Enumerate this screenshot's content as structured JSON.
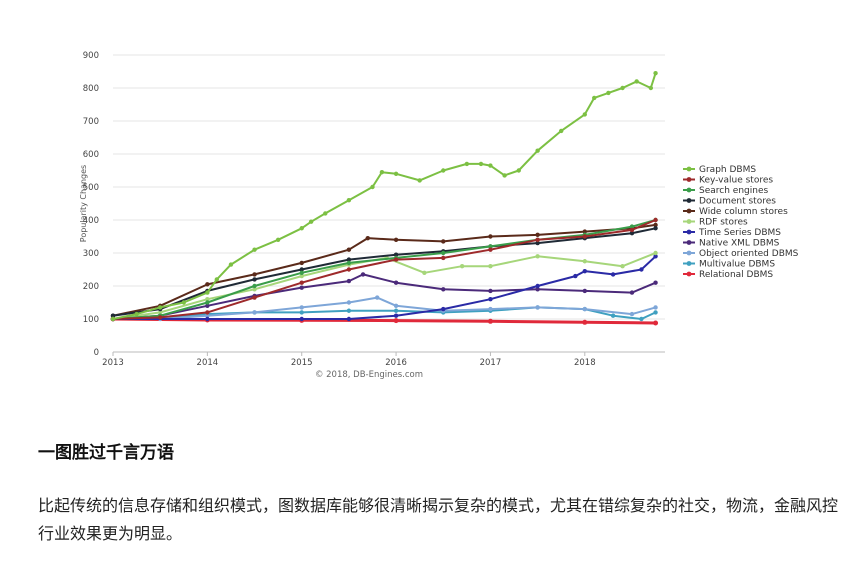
{
  "chart_data": {
    "type": "line",
    "ylabel": "Popularity Changes",
    "ylim": [
      0,
      900
    ],
    "yticks": [
      0,
      100,
      200,
      300,
      400,
      500,
      600,
      700,
      800,
      900
    ],
    "xlim": [
      2013.0,
      2018.85
    ],
    "xticks": [
      2013,
      2014,
      2015,
      2016,
      2017,
      2018
    ],
    "credit": "© 2018, DB-Engines.com",
    "grid": true,
    "legend_position": "right",
    "series": [
      {
        "name": "Graph DBMS",
        "color": "#7cc043",
        "x": [
          2013.0,
          2013.25,
          2013.5,
          2013.75,
          2014.0,
          2014.1,
          2014.25,
          2014.5,
          2014.75,
          2015.0,
          2015.1,
          2015.25,
          2015.5,
          2015.75,
          2015.85,
          2016.0,
          2016.25,
          2016.5,
          2016.75,
          2016.9,
          2017.0,
          2017.15,
          2017.3,
          2017.5,
          2017.75,
          2018.0,
          2018.1,
          2018.25,
          2018.4,
          2018.55,
          2018.7,
          2018.75
        ],
        "y": [
          100,
          115,
          135,
          150,
          180,
          220,
          265,
          310,
          340,
          375,
          395,
          420,
          460,
          500,
          545,
          540,
          520,
          550,
          570,
          570,
          565,
          535,
          550,
          610,
          670,
          720,
          770,
          785,
          800,
          820,
          800,
          845
        ]
      },
      {
        "name": "Key-value stores",
        "color": "#9e2a2b",
        "x": [
          2013.0,
          2013.5,
          2014.0,
          2014.5,
          2015.0,
          2015.5,
          2016.0,
          2016.5,
          2017.0,
          2017.5,
          2018.0,
          2018.5,
          2018.75
        ],
        "y": [
          100,
          105,
          120,
          165,
          210,
          250,
          280,
          285,
          310,
          340,
          350,
          370,
          400
        ]
      },
      {
        "name": "Search engines",
        "color": "#3a9d4a",
        "x": [
          2013.0,
          2013.5,
          2014.0,
          2014.5,
          2015.0,
          2015.5,
          2016.0,
          2016.5,
          2017.0,
          2017.5,
          2018.0,
          2018.5,
          2018.75
        ],
        "y": [
          100,
          110,
          150,
          200,
          240,
          270,
          285,
          300,
          320,
          340,
          355,
          380,
          400
        ]
      },
      {
        "name": "Document stores",
        "color": "#1f2a36",
        "x": [
          2013.0,
          2013.5,
          2014.0,
          2014.5,
          2015.0,
          2015.5,
          2016.0,
          2016.5,
          2017.0,
          2017.5,
          2018.0,
          2018.5,
          2018.75
        ],
        "y": [
          110,
          130,
          185,
          220,
          250,
          280,
          295,
          305,
          320,
          330,
          345,
          360,
          375
        ]
      },
      {
        "name": "Wide column stores",
        "color": "#5a2a1a",
        "x": [
          2013.0,
          2013.5,
          2014.0,
          2014.5,
          2015.0,
          2015.5,
          2015.7,
          2016.0,
          2016.5,
          2017.0,
          2017.5,
          2018.0,
          2018.5,
          2018.75
        ],
        "y": [
          110,
          140,
          205,
          235,
          270,
          310,
          345,
          340,
          335,
          350,
          355,
          365,
          375,
          385
        ]
      },
      {
        "name": "RDF stores",
        "color": "#a6d67a",
        "x": [
          2013.0,
          2013.5,
          2014.0,
          2014.5,
          2015.0,
          2015.5,
          2015.9,
          2016.3,
          2016.7,
          2017.0,
          2017.5,
          2018.0,
          2018.4,
          2018.75
        ],
        "y": [
          100,
          120,
          160,
          190,
          230,
          265,
          285,
          240,
          260,
          260,
          290,
          275,
          260,
          300
        ]
      },
      {
        "name": "Time Series DBMS",
        "color": "#2a2aa6",
        "x": [
          2013.0,
          2014.0,
          2015.0,
          2015.5,
          2016.0,
          2016.5,
          2017.0,
          2017.5,
          2017.9,
          2018.0,
          2018.3,
          2018.6,
          2018.75
        ],
        "y": [
          100,
          100,
          100,
          100,
          110,
          130,
          160,
          200,
          230,
          245,
          235,
          250,
          290
        ]
      },
      {
        "name": "Native XML DBMS",
        "color": "#4b2a7a",
        "x": [
          2013.0,
          2013.5,
          2014.0,
          2014.5,
          2015.0,
          2015.5,
          2015.65,
          2016.0,
          2016.5,
          2017.0,
          2017.5,
          2018.0,
          2018.5,
          2018.75
        ],
        "y": [
          100,
          110,
          140,
          170,
          195,
          215,
          235,
          210,
          190,
          185,
          190,
          185,
          180,
          210
        ]
      },
      {
        "name": "Object oriented DBMS",
        "color": "#7ea6d8",
        "x": [
          2013.0,
          2013.5,
          2014.0,
          2014.5,
          2015.0,
          2015.5,
          2015.8,
          2016.0,
          2016.5,
          2017.0,
          2017.5,
          2018.0,
          2018.5,
          2018.75
        ],
        "y": [
          100,
          100,
          110,
          120,
          135,
          150,
          165,
          140,
          125,
          130,
          135,
          130,
          115,
          135
        ]
      },
      {
        "name": "Multivalue DBMS",
        "color": "#3fa0c0",
        "x": [
          2013.0,
          2013.5,
          2014.0,
          2014.5,
          2015.0,
          2015.5,
          2016.0,
          2016.5,
          2017.0,
          2017.5,
          2018.0,
          2018.3,
          2018.6,
          2018.75
        ],
        "y": [
          100,
          105,
          115,
          120,
          120,
          125,
          125,
          120,
          125,
          135,
          130,
          110,
          100,
          120
        ]
      },
      {
        "name": "Relational DBMS",
        "color": "#e0293a",
        "x": [
          2013.0,
          2014.0,
          2015.0,
          2016.0,
          2017.0,
          2018.0,
          2018.75
        ],
        "y": [
          100,
          97,
          96,
          95,
          93,
          90,
          88
        ]
      }
    ]
  },
  "text": {
    "heading": "一图胜过千言万语",
    "paragraph": "比起传统的信息存储和组织模式，图数据库能够很清晰揭示复杂的模式，尤其在错综复杂的社交，物流，金融风控行业效果更为明显。"
  }
}
